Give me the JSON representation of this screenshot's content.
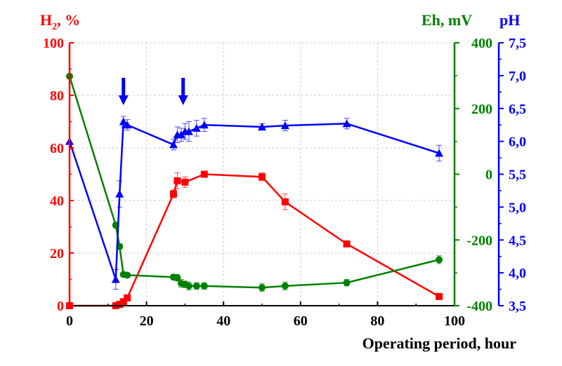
{
  "chart_data": {
    "type": "line",
    "title": "",
    "xlabel": "Operating period, hour",
    "xlim": [
      0,
      100
    ],
    "x_ticks": [
      "0",
      "20",
      "40",
      "60",
      "80",
      "100"
    ],
    "grid": true,
    "axes": {
      "h2": {
        "label_main": "H",
        "label_sub": "2",
        "label_rest": ", %",
        "color": "#ff0000",
        "ylim": [
          0,
          100
        ],
        "ticks": [
          "0",
          "20",
          "40",
          "60",
          "80",
          "100"
        ]
      },
      "eh": {
        "label": "Eh, mV",
        "color": "#008000",
        "ylim": [
          -400,
          400
        ],
        "ticks": [
          "-400",
          "-200",
          "0",
          "200",
          "400"
        ]
      },
      "ph": {
        "label": "pH",
        "color": "#0000ff",
        "ylim": [
          3.5,
          7.5
        ],
        "ticks": [
          "3,5",
          "4,0",
          "4,5",
          "5,0",
          "5,5",
          "6,0",
          "6,5",
          "7,0",
          "7,5"
        ]
      }
    },
    "series": [
      {
        "axis": "h2",
        "color": "#ff0000",
        "x": [
          0,
          12,
          13,
          14,
          15,
          27,
          28,
          30,
          35,
          50,
          56,
          72,
          96
        ],
        "y": [
          0,
          0,
          0.5,
          1.5,
          3,
          42.5,
          47.5,
          47,
          50,
          49,
          39.5,
          23.5,
          3.5
        ],
        "err": [
          0,
          0,
          0,
          0,
          0,
          1.5,
          3,
          2,
          1,
          1.5,
          3,
          0,
          0
        ]
      },
      {
        "axis": "eh",
        "color": "#008000",
        "x": [
          0,
          12,
          13,
          14,
          15,
          27,
          28,
          29,
          30,
          31,
          33,
          35,
          50,
          56,
          72,
          96
        ],
        "y": [
          298,
          -155,
          -220,
          -305,
          -307,
          -313,
          -315,
          -332,
          -335,
          -340,
          -340,
          -340,
          -345,
          -340,
          -330,
          -260
        ],
        "err": [
          0,
          8,
          8,
          6,
          5,
          8,
          10,
          12,
          10,
          12,
          10,
          10,
          12,
          12,
          10,
          12
        ]
      },
      {
        "axis": "ph",
        "color": "#0000ff",
        "x": [
          0,
          12,
          13,
          14,
          15,
          27,
          28,
          29,
          30,
          31,
          33,
          35,
          50,
          56,
          72,
          96
        ],
        "y": [
          6.0,
          3.9,
          5.2,
          6.3,
          6.25,
          5.95,
          6.1,
          6.1,
          6.15,
          6.15,
          6.2,
          6.25,
          6.22,
          6.24,
          6.27,
          5.82
        ],
        "err": [
          0,
          0.15,
          0.2,
          0.08,
          0.08,
          0.08,
          0.12,
          0.1,
          0.12,
          0.15,
          0.12,
          0.1,
          0.05,
          0.08,
          0.08,
          0.12
        ]
      }
    ],
    "arrows": [
      {
        "x": 14,
        "color": "#0000ff"
      },
      {
        "x": 29.5,
        "color": "#0000ff"
      }
    ]
  }
}
